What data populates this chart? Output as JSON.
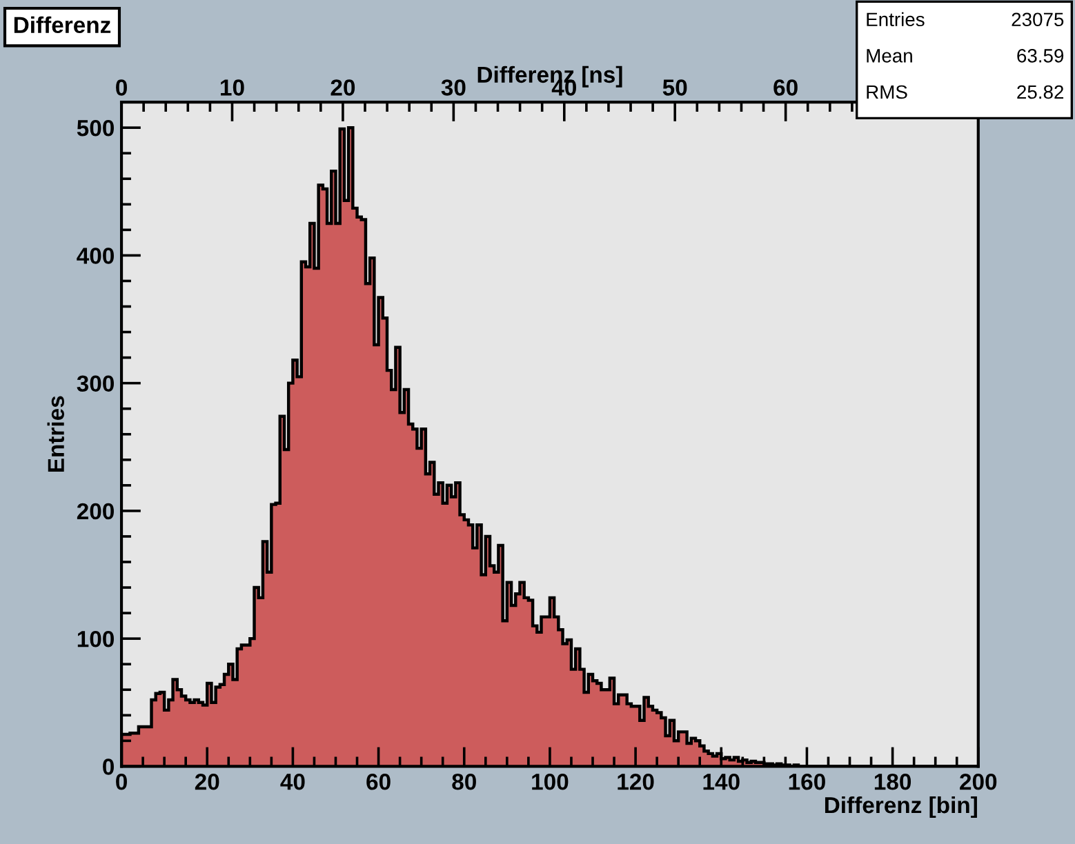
{
  "chart_data": {
    "type": "histogram",
    "title": "Differenz",
    "xlabel": "Differenz [bin]",
    "x2label": "Differenz [ns]",
    "ylabel": "Entries",
    "annotations": [
      "Entries",
      "23075",
      "Mean",
      "63.59",
      "RMS",
      "25.82"
    ],
    "color": "#cd5c5c",
    "bins": [
      0,
      1,
      2,
      3,
      4,
      5,
      6,
      7,
      8,
      9,
      10,
      11,
      12,
      13,
      14,
      15,
      16,
      17,
      18,
      19,
      20,
      21,
      22,
      23,
      24,
      25,
      26,
      27,
      28,
      29,
      30,
      31,
      32,
      33,
      34,
      35,
      36,
      37,
      38,
      39,
      40,
      41,
      42,
      43,
      44,
      45,
      46,
      47,
      48,
      49,
      50,
      51,
      52,
      53,
      54,
      55,
      56,
      57,
      58,
      59,
      60,
      61,
      62,
      63,
      64,
      65,
      66,
      67,
      68,
      69,
      70,
      71,
      72,
      73,
      74,
      75,
      76,
      77,
      78,
      79,
      80,
      81,
      82,
      83,
      84,
      85,
      86,
      87,
      88,
      89,
      90,
      91,
      92,
      93,
      94,
      95,
      96,
      97,
      98,
      99,
      100,
      101,
      102,
      103,
      104,
      105,
      106,
      107,
      108,
      109,
      110,
      111,
      112,
      113,
      114,
      115,
      116,
      117,
      118,
      119,
      120,
      121,
      122,
      123,
      124,
      125,
      126,
      127,
      128,
      129,
      130,
      131,
      132,
      133,
      134,
      135,
      136,
      137,
      138,
      139,
      140,
      141,
      142,
      143,
      144,
      145,
      146,
      147,
      148,
      149,
      150,
      151,
      152,
      153,
      154,
      155,
      156,
      157,
      158,
      159,
      160,
      161,
      162,
      163,
      164,
      165,
      166,
      167,
      168,
      169,
      170,
      171,
      172,
      173,
      174,
      175,
      176,
      177,
      178,
      179,
      180,
      181,
      182,
      183,
      184,
      185,
      186,
      187,
      188,
      189,
      190,
      191,
      192,
      193,
      194,
      195,
      196,
      197,
      198,
      199,
      200
    ],
    "values": [
      25,
      25,
      26,
      26,
      31,
      31,
      31,
      52,
      57,
      58,
      44,
      52,
      68,
      60,
      55,
      52,
      50,
      52,
      50,
      48,
      65,
      50,
      62,
      64,
      72,
      80,
      68,
      92,
      95,
      95,
      100,
      140,
      132,
      176,
      152,
      205,
      206,
      274,
      248,
      300,
      318,
      305,
      395,
      391,
      425,
      390,
      455,
      452,
      425,
      466,
      425,
      499,
      443,
      500,
      437,
      430,
      428,
      378,
      398,
      330,
      367,
      351,
      310,
      295,
      328,
      277,
      295,
      268,
      264,
      249,
      264,
      229,
      238,
      213,
      222,
      206,
      220,
      211,
      222,
      197,
      193,
      189,
      171,
      189,
      150,
      180,
      157,
      152,
      173,
      114,
      144,
      126,
      135,
      144,
      132,
      130,
      110,
      105,
      117,
      117,
      132,
      117,
      107,
      96,
      99,
      76,
      92,
      76,
      58,
      72,
      67,
      65,
      60,
      60,
      69,
      49,
      56,
      56,
      49,
      47,
      47,
      36,
      54,
      47,
      44,
      42,
      38,
      24,
      36,
      20,
      27,
      27,
      18,
      22,
      20,
      16,
      12,
      10,
      8,
      10,
      6,
      7,
      5,
      7,
      4,
      5,
      3,
      4,
      3,
      3,
      2,
      2,
      1,
      2,
      1,
      1,
      0,
      1,
      0,
      0,
      0,
      0,
      0,
      0,
      0,
      0,
      0,
      0,
      0,
      0,
      0,
      0,
      0,
      0,
      0,
      0,
      0,
      0,
      0,
      0,
      0,
      0,
      0,
      0,
      0,
      0,
      0,
      0,
      0,
      0,
      0,
      0,
      0,
      0,
      0,
      0,
      0,
      0,
      0,
      0
    ],
    "xlim": [
      0,
      200
    ],
    "xticks": [
      0,
      20,
      40,
      60,
      80,
      100,
      120,
      140,
      160,
      180,
      200
    ],
    "x2lim": [
      0,
      77.4
    ],
    "x2ticks": [
      0,
      10,
      20,
      30,
      40,
      50,
      60
    ],
    "ylim": [
      0,
      520
    ],
    "yticks": [
      0,
      100,
      200,
      300,
      400,
      500
    ],
    "grid": false,
    "legend": false
  }
}
